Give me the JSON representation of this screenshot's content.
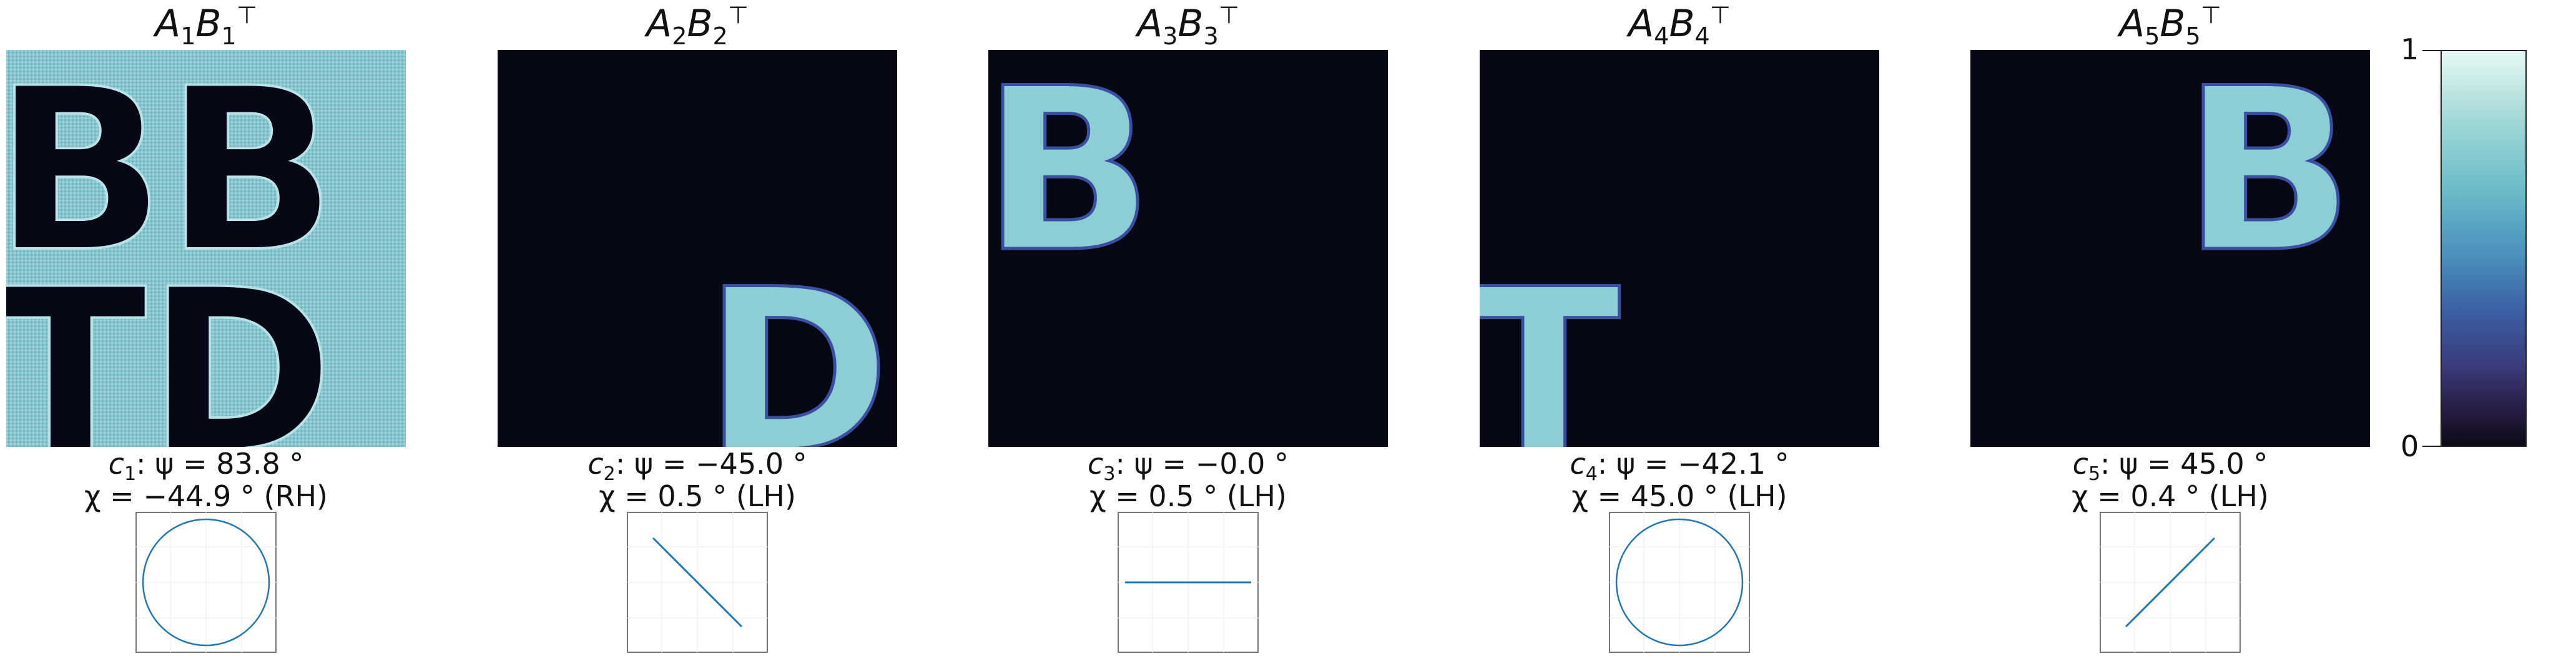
{
  "panels": [
    {
      "title": {
        "base": "A",
        "i": "1",
        "mid": "B",
        "sup": "⊤"
      },
      "cap_line1": {
        "c": "c",
        "ci": "1",
        "rest": ":  ψ = 83.8 °"
      },
      "cap_line2": "χ = −44.9 °  (RH)",
      "pattern": "BBTD-inverse",
      "ellipse": "circle"
    },
    {
      "title": {
        "base": "A",
        "i": "2",
        "mid": "B",
        "sup": "⊤"
      },
      "cap_line1": {
        "c": "c",
        "ci": "2",
        "rest": ":  ψ = −45.0 °"
      },
      "cap_line2": "χ = 0.5 °  (LH)",
      "pattern": "D-bottom-right",
      "ellipse": "line-down"
    },
    {
      "title": {
        "base": "A",
        "i": "3",
        "mid": "B",
        "sup": "⊤"
      },
      "cap_line1": {
        "c": "c",
        "ci": "3",
        "rest": ":  ψ = −0.0 °"
      },
      "cap_line2": "χ = 0.5 °  (LH)",
      "pattern": "B-top-left",
      "ellipse": "line-horizontal"
    },
    {
      "title": {
        "base": "A",
        "i": "4",
        "mid": "B",
        "sup": "⊤"
      },
      "cap_line1": {
        "c": "c",
        "ci": "4",
        "rest": ":  ψ = −42.1 °"
      },
      "cap_line2": "χ = 45.0 °  (LH)",
      "pattern": "T-bottom-left",
      "ellipse": "circle"
    },
    {
      "title": {
        "base": "A",
        "i": "5",
        "mid": "B",
        "sup": "⊤"
      },
      "cap_line1": {
        "c": "c",
        "ci": "5",
        "rest": ":  ψ = 45.0 °"
      },
      "cap_line2": "χ = 0.4 °  (LH)",
      "pattern": "B-top-right",
      "ellipse": "line-up"
    }
  ],
  "colorbar": {
    "max_label": "1",
    "min_label": "0"
  },
  "colors": {
    "dark": "#060815",
    "light": "#86c6d0",
    "ellipse": "#1f77b4"
  }
}
